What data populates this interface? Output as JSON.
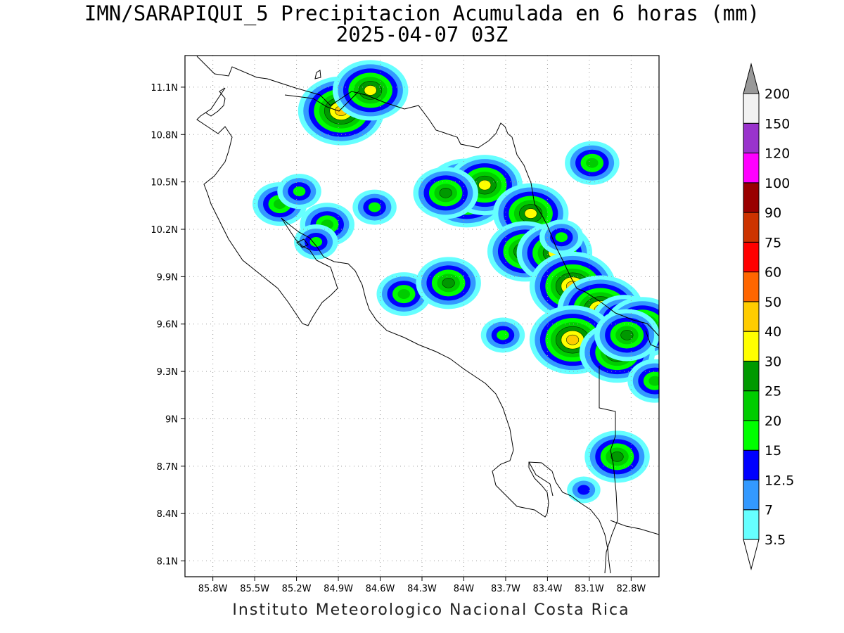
{
  "title": {
    "line1": "IMN/SARAPIQUI_5 Precipitacion Acumulada en 6 horas (mm)",
    "line2": "2025-04-07 03Z"
  },
  "footer": "Instituto Meteorologico Nacional Costa Rica",
  "map": {
    "lon_range": [
      -86.0,
      -82.6
    ],
    "lat_range": [
      8.0,
      11.3
    ],
    "x_ticks": [
      "85.8W",
      "85.5W",
      "85.2W",
      "84.9W",
      "84.6W",
      "84.3W",
      "84W",
      "83.7W",
      "83.4W",
      "83.1W",
      "82.8W"
    ],
    "x_tick_values": [
      -85.8,
      -85.5,
      -85.2,
      -84.9,
      -84.6,
      -84.3,
      -84.0,
      -83.7,
      -83.4,
      -83.1,
      -82.8
    ],
    "y_ticks": [
      "11.1N",
      "10.8N",
      "10.5N",
      "10.2N",
      "9.9N",
      "9.6N",
      "9.3N",
      "9N",
      "8.7N",
      "8.4N",
      "8.1N"
    ],
    "y_tick_values": [
      11.1,
      10.8,
      10.5,
      10.2,
      9.9,
      9.6,
      9.3,
      9.0,
      8.7,
      8.4,
      8.1
    ],
    "grid": "dotted"
  },
  "colorbar": {
    "labels": [
      "3.5",
      "7",
      "12.5",
      "15",
      "20",
      "25",
      "30",
      "40",
      "50",
      "60",
      "75",
      "90",
      "100",
      "120",
      "150",
      "200"
    ],
    "colors": [
      "#66ffff",
      "#3399ff",
      "#0000ff",
      "#00ff00",
      "#00cc00",
      "#009900",
      "#ffff00",
      "#ffcc00",
      "#ff6600",
      "#ff0000",
      "#cc3300",
      "#990000",
      "#ff00ff",
      "#9933cc",
      "#f2f2f2"
    ],
    "under_color": "#ffffff",
    "over_color": "#999999"
  },
  "precip_cells": [
    {
      "lon": -84.88,
      "lat": 10.95,
      "level": 7
    },
    {
      "lon": -84.67,
      "lat": 11.08,
      "level": 6
    },
    {
      "lon": -83.98,
      "lat": 10.43,
      "level": 7
    },
    {
      "lon": -83.85,
      "lat": 10.48,
      "level": 6
    },
    {
      "lon": -84.13,
      "lat": 10.43,
      "level": 5
    },
    {
      "lon": -83.52,
      "lat": 10.3,
      "level": 6
    },
    {
      "lon": -83.56,
      "lat": 10.06,
      "level": 6
    },
    {
      "lon": -83.35,
      "lat": 10.05,
      "level": 6
    },
    {
      "lon": -83.22,
      "lat": 9.84,
      "level": 7
    },
    {
      "lon": -83.02,
      "lat": 9.69,
      "level": 7
    },
    {
      "lon": -82.85,
      "lat": 9.62,
      "level": 5
    },
    {
      "lon": -82.72,
      "lat": 9.58,
      "level": 6
    },
    {
      "lon": -83.22,
      "lat": 9.5,
      "level": 7
    },
    {
      "lon": -82.9,
      "lat": 9.42,
      "level": 6
    },
    {
      "lon": -82.83,
      "lat": 9.53,
      "level": 5
    },
    {
      "lon": -82.9,
      "lat": 8.76,
      "level": 5
    },
    {
      "lon": -83.08,
      "lat": 10.62,
      "level": 4
    },
    {
      "lon": -85.32,
      "lat": 10.36,
      "level": 4
    },
    {
      "lon": -84.98,
      "lat": 10.23,
      "level": 4
    },
    {
      "lon": -85.06,
      "lat": 10.12,
      "level": 3
    },
    {
      "lon": -84.43,
      "lat": 9.79,
      "level": 4
    },
    {
      "lon": -84.11,
      "lat": 9.86,
      "level": 5
    },
    {
      "lon": -83.72,
      "lat": 9.53,
      "level": 3
    },
    {
      "lon": -82.63,
      "lat": 9.24,
      "level": 4
    },
    {
      "lon": -84.64,
      "lat": 10.34,
      "level": 3
    },
    {
      "lon": -85.18,
      "lat": 10.44,
      "level": 3
    },
    {
      "lon": -83.3,
      "lat": 10.15,
      "level": 3
    },
    {
      "lon": -83.14,
      "lat": 8.55,
      "level": 2
    }
  ]
}
